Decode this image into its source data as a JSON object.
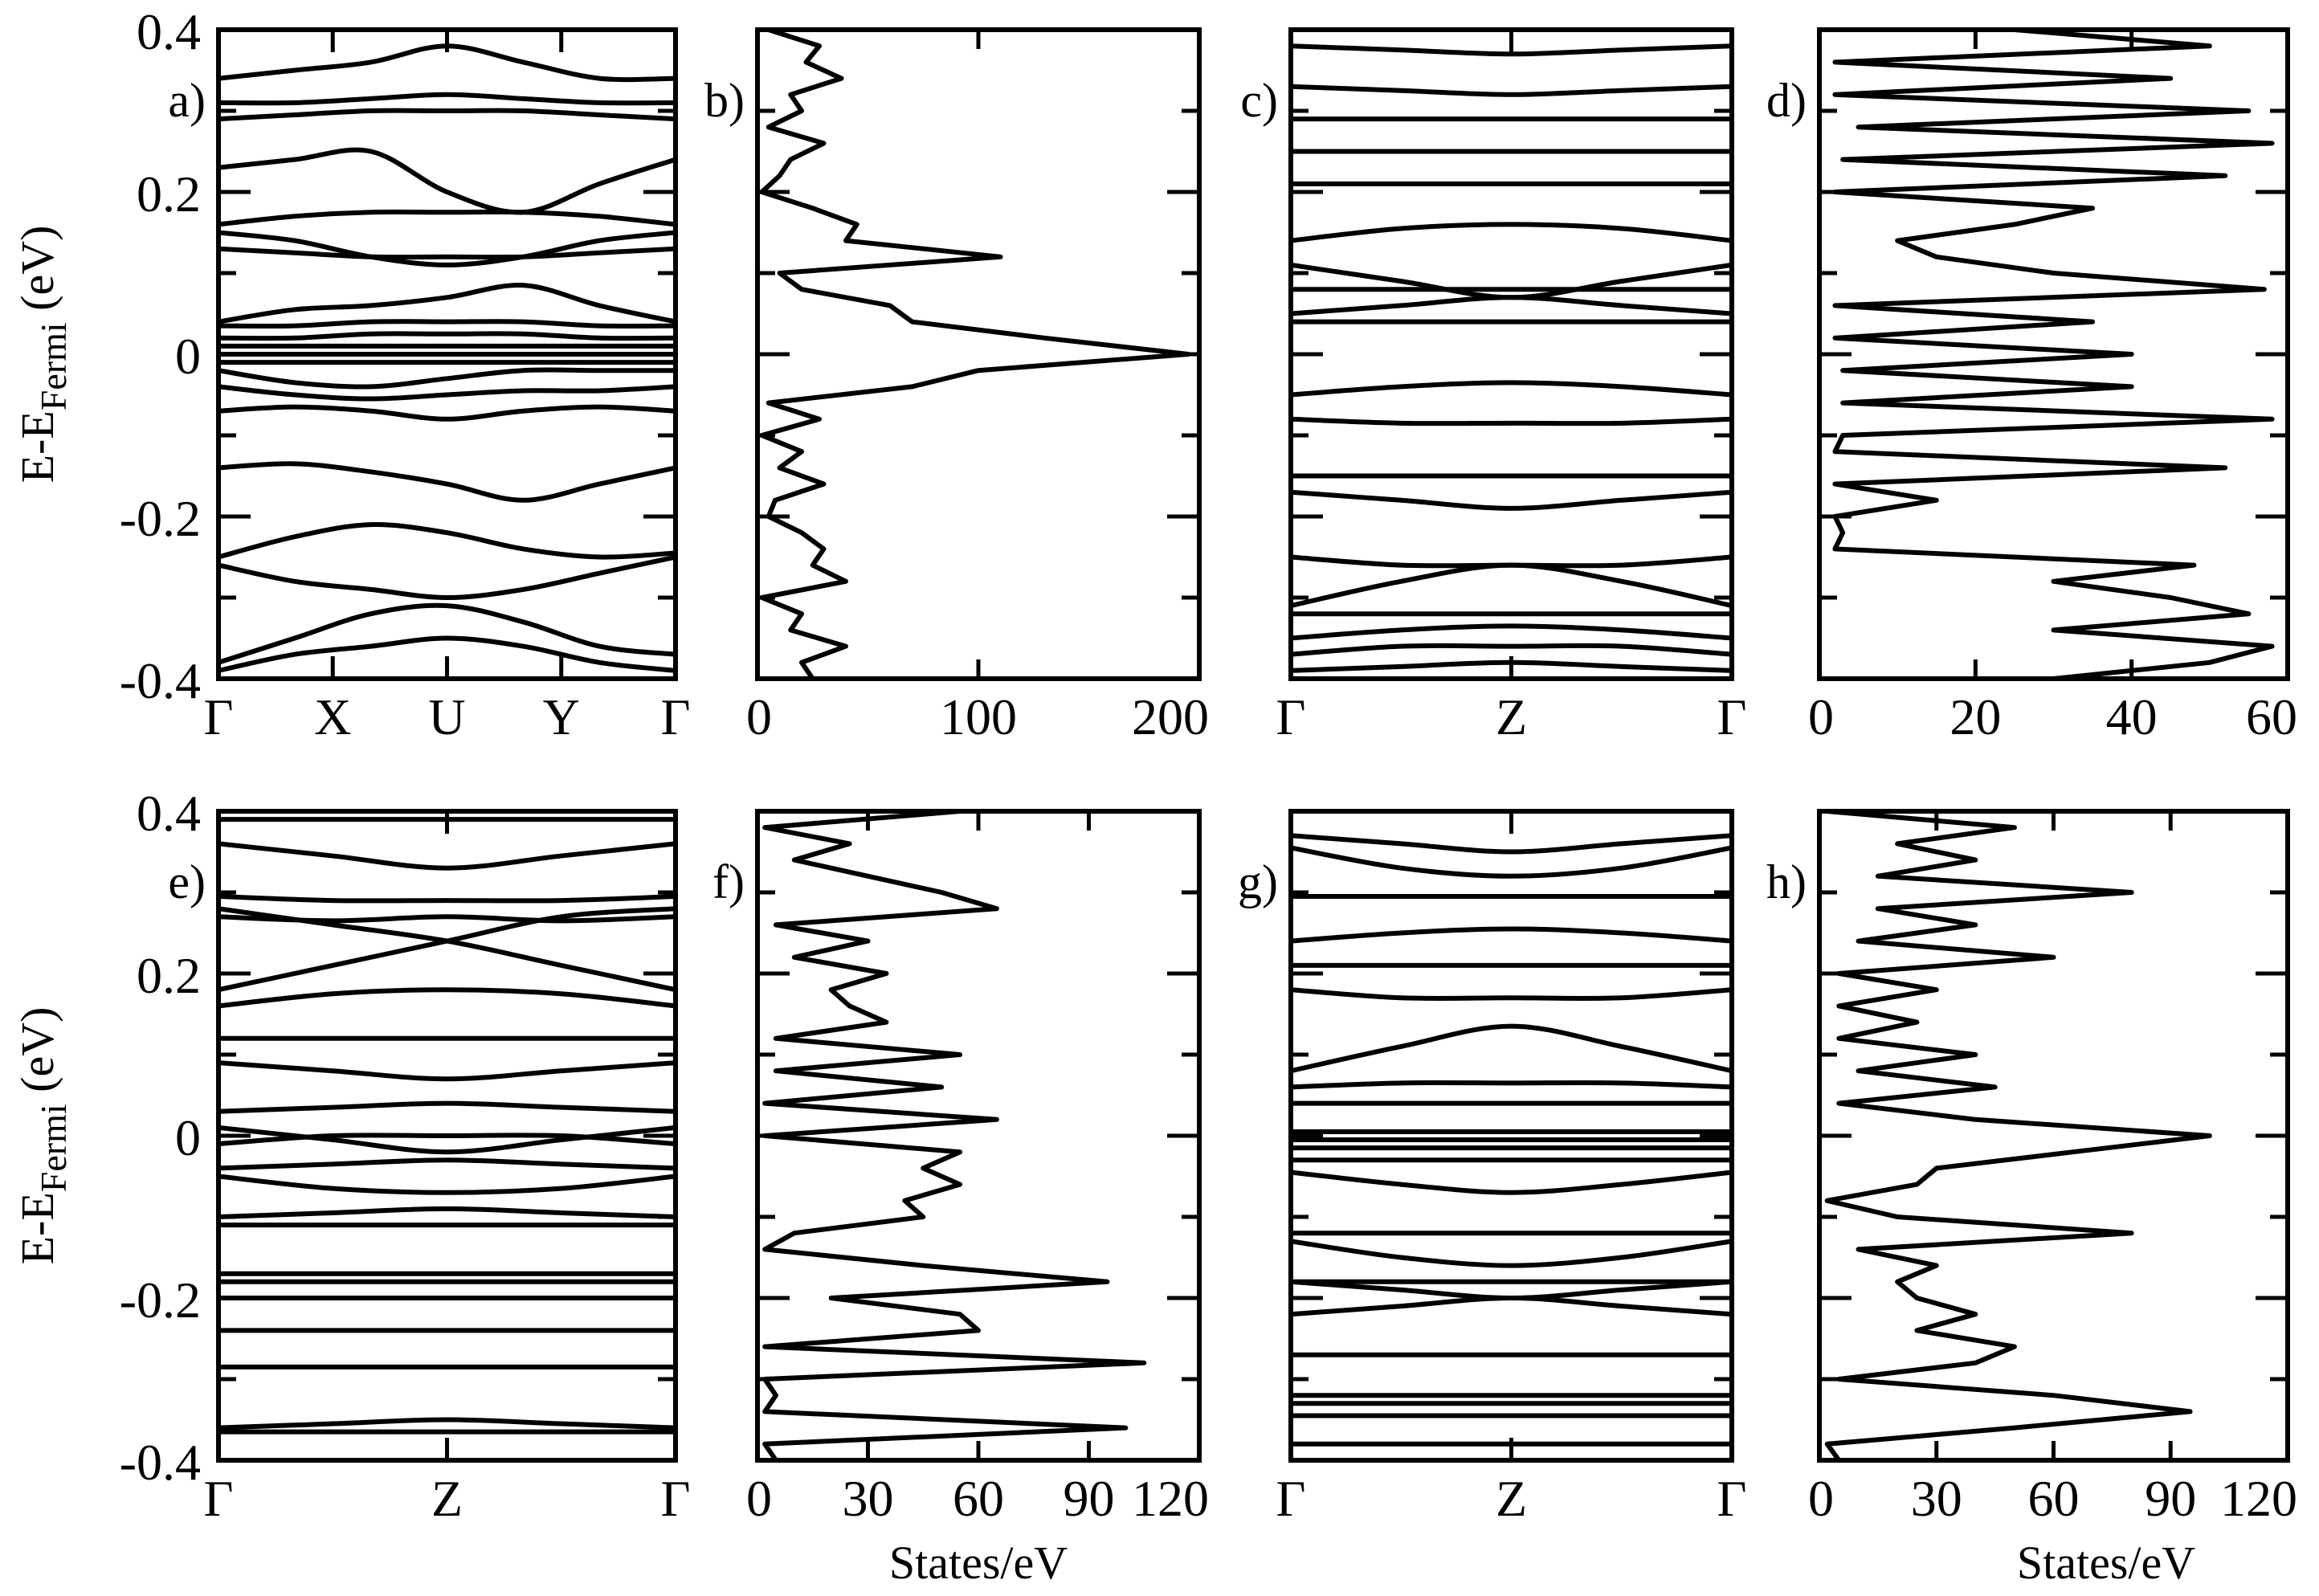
{
  "figure": {
    "ylabel_main": "E-E",
    "ylabel_sub": "Fermi",
    "ylabel_unit": " (eV)",
    "dos_xlabel": "States/eV",
    "y_ticks": [
      "0.4",
      "0.2",
      "0",
      "-0.2",
      "-0.4"
    ]
  },
  "chart_data": [
    {
      "panel": "a)",
      "type": "line",
      "kind": "band-structure",
      "x_ticks": [
        "Γ",
        "X",
        "U",
        "Y",
        "Γ"
      ],
      "ylim": [
        -0.4,
        0.4
      ],
      "ylabel": "E-EFermi (eV)",
      "bands": [
        [
          0.34,
          0.35,
          0.36,
          0.38,
          0.36,
          0.34,
          0.34
        ],
        [
          0.31,
          0.31,
          0.315,
          0.32,
          0.315,
          0.31,
          0.31
        ],
        [
          0.29,
          0.295,
          0.3,
          0.3,
          0.3,
          0.295,
          0.29
        ],
        [
          0.23,
          0.24,
          0.25,
          0.2,
          0.175,
          0.21,
          0.24
        ],
        [
          0.16,
          0.17,
          0.175,
          0.175,
          0.175,
          0.17,
          0.16
        ],
        [
          0.15,
          0.14,
          0.12,
          0.11,
          0.12,
          0.14,
          0.15
        ],
        [
          0.13,
          0.125,
          0.12,
          0.12,
          0.12,
          0.125,
          0.13
        ],
        [
          0.04,
          0.055,
          0.06,
          0.07,
          0.085,
          0.06,
          0.04
        ],
        [
          0.035,
          0.035,
          0.04,
          0.04,
          0.04,
          0.035,
          0.035
        ],
        [
          0.02,
          0.02,
          0.025,
          0.025,
          0.025,
          0.02,
          0.02
        ],
        [
          0.01,
          0.01,
          0.01,
          0.01,
          0.01,
          0.01,
          0.01
        ],
        [
          0.0,
          0.0,
          0.0,
          0.0,
          0.0,
          0.0,
          0.0
        ],
        [
          -0.01,
          -0.01,
          -0.01,
          -0.01,
          -0.01,
          -0.01,
          -0.01
        ],
        [
          -0.02,
          -0.035,
          -0.04,
          -0.03,
          -0.02,
          -0.02,
          -0.02
        ],
        [
          -0.04,
          -0.05,
          -0.055,
          -0.05,
          -0.045,
          -0.045,
          -0.04
        ],
        [
          -0.07,
          -0.065,
          -0.07,
          -0.08,
          -0.07,
          -0.065,
          -0.07
        ],
        [
          -0.14,
          -0.135,
          -0.145,
          -0.16,
          -0.18,
          -0.16,
          -0.14
        ],
        [
          -0.25,
          -0.225,
          -0.21,
          -0.22,
          -0.24,
          -0.25,
          -0.245
        ],
        [
          -0.26,
          -0.28,
          -0.29,
          -0.3,
          -0.29,
          -0.27,
          -0.25
        ],
        [
          -0.38,
          -0.35,
          -0.32,
          -0.31,
          -0.33,
          -0.36,
          -0.37
        ],
        [
          -0.39,
          -0.37,
          -0.36,
          -0.35,
          -0.36,
          -0.38,
          -0.39
        ]
      ]
    },
    {
      "panel": "b)",
      "type": "line",
      "kind": "density-of-states",
      "x_ticks": [
        "0",
        "100",
        "200"
      ],
      "xlim": [
        0,
        200
      ],
      "ylim": [
        -0.4,
        0.4
      ],
      "energies": [
        0.4,
        0.38,
        0.36,
        0.34,
        0.32,
        0.3,
        0.28,
        0.26,
        0.24,
        0.22,
        0.2,
        0.18,
        0.16,
        0.14,
        0.12,
        0.1,
        0.08,
        0.06,
        0.04,
        0.02,
        0.0,
        -0.02,
        -0.04,
        -0.06,
        -0.08,
        -0.1,
        -0.12,
        -0.14,
        -0.16,
        -0.18,
        -0.2,
        -0.22,
        -0.24,
        -0.26,
        -0.28,
        -0.3,
        -0.32,
        -0.34,
        -0.36,
        -0.38,
        -0.4
      ],
      "values": [
        5,
        28,
        22,
        38,
        15,
        20,
        5,
        30,
        15,
        10,
        2,
        25,
        45,
        40,
        110,
        10,
        20,
        60,
        70,
        130,
        195,
        100,
        70,
        5,
        28,
        2,
        20,
        10,
        30,
        8,
        5,
        20,
        30,
        25,
        40,
        2,
        20,
        15,
        40,
        20,
        25
      ]
    },
    {
      "panel": "c)",
      "type": "line",
      "kind": "band-structure",
      "x_ticks": [
        "Γ",
        "Z",
        "Γ"
      ],
      "ylim": [
        -0.4,
        0.4
      ],
      "bands": [
        [
          0.38,
          0.375,
          0.37,
          0.375,
          0.38
        ],
        [
          0.33,
          0.325,
          0.32,
          0.325,
          0.33
        ],
        [
          0.29,
          0.29,
          0.29,
          0.29,
          0.29
        ],
        [
          0.25,
          0.25,
          0.25,
          0.25,
          0.25
        ],
        [
          0.21,
          0.21,
          0.21,
          0.21,
          0.21
        ],
        [
          0.14,
          0.155,
          0.16,
          0.155,
          0.14
        ],
        [
          0.11,
          0.09,
          0.07,
          0.09,
          0.11
        ],
        [
          0.05,
          0.06,
          0.07,
          0.06,
          0.05
        ],
        [
          0.08,
          0.08,
          0.08,
          0.08,
          0.08
        ],
        [
          0.04,
          0.04,
          0.04,
          0.04,
          0.04
        ],
        [
          -0.05,
          -0.04,
          -0.035,
          -0.04,
          -0.05
        ],
        [
          -0.08,
          -0.085,
          -0.085,
          -0.085,
          -0.08
        ],
        [
          -0.15,
          -0.15,
          -0.15,
          -0.15,
          -0.15
        ],
        [
          -0.17,
          -0.18,
          -0.19,
          -0.18,
          -0.17
        ],
        [
          -0.25,
          -0.26,
          -0.26,
          -0.26,
          -0.25
        ],
        [
          -0.31,
          -0.28,
          -0.26,
          -0.28,
          -0.31
        ],
        [
          -0.32,
          -0.32,
          -0.32,
          -0.32,
          -0.32
        ],
        [
          -0.35,
          -0.34,
          -0.335,
          -0.34,
          -0.35
        ],
        [
          -0.37,
          -0.36,
          -0.36,
          -0.36,
          -0.37
        ],
        [
          -0.39,
          -0.385,
          -0.38,
          -0.385,
          -0.39
        ]
      ]
    },
    {
      "panel": "d)",
      "type": "line",
      "kind": "density-of-states",
      "x_ticks": [
        "0",
        "20",
        "40",
        "60"
      ],
      "xlim": [
        0,
        60
      ],
      "ylim": [
        -0.4,
        0.4
      ],
      "energies": [
        0.4,
        0.38,
        0.36,
        0.34,
        0.32,
        0.3,
        0.28,
        0.26,
        0.24,
        0.22,
        0.2,
        0.18,
        0.16,
        0.14,
        0.12,
        0.1,
        0.08,
        0.06,
        0.04,
        0.02,
        0.0,
        -0.02,
        -0.04,
        -0.06,
        -0.08,
        -0.1,
        -0.12,
        -0.14,
        -0.16,
        -0.18,
        -0.2,
        -0.22,
        -0.24,
        -0.26,
        -0.28,
        -0.3,
        -0.32,
        -0.34,
        -0.36,
        -0.38,
        -0.4
      ],
      "values": [
        25,
        50,
        2,
        45,
        2,
        55,
        5,
        58,
        3,
        52,
        2,
        35,
        25,
        10,
        15,
        30,
        57,
        2,
        35,
        2,
        40,
        3,
        40,
        3,
        58,
        3,
        2,
        52,
        2,
        15,
        2,
        3,
        2,
        48,
        30,
        45,
        55,
        30,
        58,
        50,
        30
      ]
    },
    {
      "panel": "e)",
      "type": "line",
      "kind": "band-structure",
      "x_ticks": [
        "Γ",
        "Z",
        "Γ"
      ],
      "ylim": [
        -0.4,
        0.4
      ],
      "ylabel": "E-EFermi (eV)",
      "bands": [
        [
          0.39,
          0.39,
          0.39,
          0.39,
          0.39
        ],
        [
          0.36,
          0.345,
          0.33,
          0.345,
          0.36
        ],
        [
          0.295,
          0.29,
          0.29,
          0.29,
          0.295
        ],
        [
          0.27,
          0.265,
          0.27,
          0.265,
          0.27
        ],
        [
          0.18,
          0.21,
          0.24,
          0.27,
          0.28
        ],
        [
          0.28,
          0.26,
          0.24,
          0.21,
          0.18
        ],
        [
          0.16,
          0.175,
          0.18,
          0.175,
          0.16
        ],
        [
          0.12,
          0.12,
          0.12,
          0.12,
          0.12
        ],
        [
          0.09,
          0.08,
          0.07,
          0.08,
          0.09
        ],
        [
          0.03,
          0.035,
          0.04,
          0.035,
          0.03
        ],
        [
          0.01,
          -0.005,
          -0.02,
          -0.005,
          0.01
        ],
        [
          -0.01,
          0.0,
          0.0,
          0.0,
          -0.01
        ],
        [
          -0.04,
          -0.035,
          -0.03,
          -0.035,
          -0.04
        ],
        [
          -0.05,
          -0.065,
          -0.07,
          -0.065,
          -0.05
        ],
        [
          -0.1,
          -0.095,
          -0.09,
          -0.095,
          -0.1
        ],
        [
          -0.11,
          -0.11,
          -0.11,
          -0.11,
          -0.11
        ],
        [
          -0.17,
          -0.17,
          -0.17,
          -0.17,
          -0.17
        ],
        [
          -0.18,
          -0.18,
          -0.18,
          -0.18,
          -0.18
        ],
        [
          -0.2,
          -0.2,
          -0.2,
          -0.2,
          -0.2
        ],
        [
          -0.24,
          -0.24,
          -0.24,
          -0.24,
          -0.24
        ],
        [
          -0.285,
          -0.285,
          -0.285,
          -0.285,
          -0.285
        ],
        [
          -0.36,
          -0.355,
          -0.35,
          -0.355,
          -0.36
        ],
        [
          -0.365,
          -0.365,
          -0.365,
          -0.365,
          -0.365
        ]
      ]
    },
    {
      "panel": "f)",
      "type": "line",
      "kind": "density-of-states",
      "x_ticks": [
        "0",
        "30",
        "60",
        "90",
        "120"
      ],
      "xlim": [
        0,
        120
      ],
      "ylim": [
        -0.4,
        0.4
      ],
      "xlabel": "States/eV",
      "energies": [
        0.4,
        0.38,
        0.36,
        0.34,
        0.32,
        0.3,
        0.28,
        0.26,
        0.24,
        0.22,
        0.2,
        0.18,
        0.16,
        0.14,
        0.12,
        0.1,
        0.08,
        0.06,
        0.04,
        0.02,
        0.0,
        -0.02,
        -0.04,
        -0.06,
        -0.08,
        -0.1,
        -0.12,
        -0.14,
        -0.16,
        -0.18,
        -0.2,
        -0.22,
        -0.24,
        -0.26,
        -0.28,
        -0.3,
        -0.32,
        -0.34,
        -0.36,
        -0.38,
        -0.4
      ],
      "values": [
        55,
        2,
        25,
        10,
        30,
        50,
        65,
        5,
        30,
        10,
        35,
        20,
        25,
        35,
        5,
        55,
        5,
        50,
        2,
        65,
        2,
        55,
        45,
        55,
        40,
        45,
        10,
        2,
        45,
        95,
        20,
        55,
        60,
        2,
        105,
        2,
        5,
        2,
        100,
        2,
        5
      ]
    },
    {
      "panel": "g)",
      "type": "line",
      "kind": "band-structure",
      "x_ticks": [
        "Γ",
        "Z",
        "Γ"
      ],
      "ylim": [
        -0.4,
        0.4
      ],
      "bands": [
        [
          0.37,
          0.36,
          0.35,
          0.36,
          0.37
        ],
        [
          0.355,
          0.33,
          0.32,
          0.33,
          0.355
        ],
        [
          0.295,
          0.295,
          0.295,
          0.295,
          0.295
        ],
        [
          0.24,
          0.25,
          0.255,
          0.25,
          0.24
        ],
        [
          0.21,
          0.21,
          0.21,
          0.21,
          0.21
        ],
        [
          0.18,
          0.17,
          0.17,
          0.17,
          0.18
        ],
        [
          0.08,
          0.11,
          0.135,
          0.11,
          0.08
        ],
        [
          0.06,
          0.065,
          0.065,
          0.065,
          0.06
        ],
        [
          0.04,
          0.04,
          0.04,
          0.04,
          0.04
        ],
        [
          0.005,
          0.005,
          0.005,
          0.005,
          0.005
        ],
        [
          -0.005,
          -0.005,
          -0.005,
          -0.005,
          -0.005
        ],
        [
          -0.015,
          -0.015,
          -0.015,
          -0.015,
          -0.015
        ],
        [
          -0.03,
          -0.03,
          -0.03,
          -0.03,
          -0.03
        ],
        [
          -0.045,
          -0.06,
          -0.07,
          -0.06,
          -0.045
        ],
        [
          -0.12,
          -0.12,
          -0.12,
          -0.12,
          -0.12
        ],
        [
          -0.13,
          -0.15,
          -0.16,
          -0.15,
          -0.13
        ],
        [
          -0.18,
          -0.18,
          -0.18,
          -0.18,
          -0.18
        ],
        [
          -0.22,
          -0.21,
          -0.2,
          -0.21,
          -0.22
        ],
        [
          -0.18,
          -0.19,
          -0.2,
          -0.19,
          -0.18
        ],
        [
          -0.27,
          -0.27,
          -0.27,
          -0.27,
          -0.27
        ],
        [
          -0.32,
          -0.32,
          -0.32,
          -0.32,
          -0.32
        ],
        [
          -0.33,
          -0.33,
          -0.33,
          -0.33,
          -0.33
        ],
        [
          -0.345,
          -0.345,
          -0.345,
          -0.345,
          -0.345
        ],
        [
          -0.38,
          -0.38,
          -0.38,
          -0.38,
          -0.38
        ]
      ]
    },
    {
      "panel": "h)",
      "type": "line",
      "kind": "density-of-states",
      "x_ticks": [
        "0",
        "30",
        "60",
        "90",
        "120"
      ],
      "xlim": [
        0,
        120
      ],
      "ylim": [
        -0.4,
        0.4
      ],
      "xlabel": "States/eV",
      "energies": [
        0.4,
        0.38,
        0.36,
        0.34,
        0.32,
        0.3,
        0.28,
        0.26,
        0.24,
        0.22,
        0.2,
        0.18,
        0.16,
        0.14,
        0.12,
        0.1,
        0.08,
        0.06,
        0.04,
        0.02,
        0.0,
        -0.02,
        -0.04,
        -0.06,
        -0.08,
        -0.1,
        -0.12,
        -0.14,
        -0.16,
        -0.18,
        -0.2,
        -0.22,
        -0.24,
        -0.26,
        -0.28,
        -0.3,
        -0.32,
        -0.34,
        -0.36,
        -0.38,
        -0.4
      ],
      "values": [
        2,
        50,
        20,
        40,
        15,
        80,
        15,
        40,
        10,
        60,
        5,
        30,
        5,
        25,
        5,
        40,
        10,
        45,
        5,
        40,
        100,
        65,
        30,
        25,
        2,
        20,
        80,
        10,
        30,
        20,
        25,
        40,
        25,
        50,
        40,
        5,
        60,
        95,
        50,
        2,
        5
      ]
    }
  ]
}
